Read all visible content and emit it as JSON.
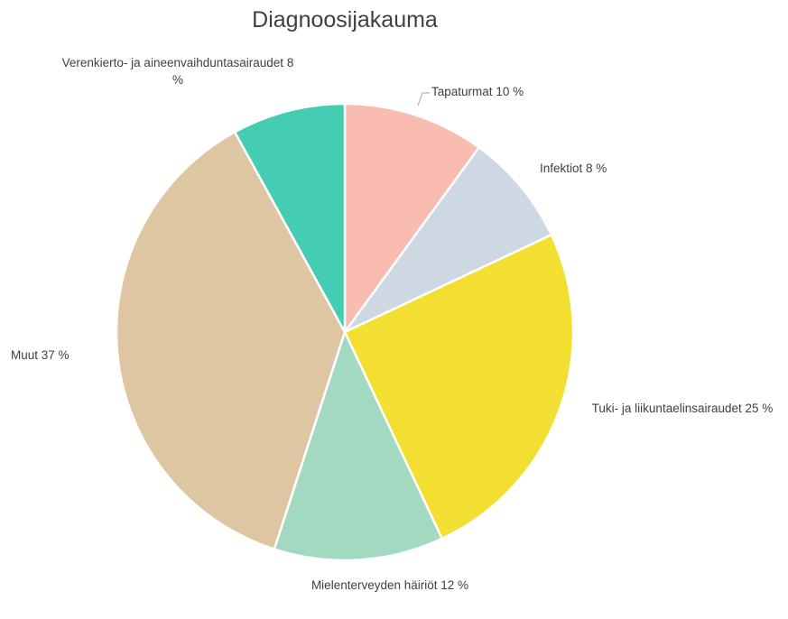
{
  "chart_data": {
    "type": "pie",
    "title": "Diagnoosijakauma",
    "categories": [
      "Tapaturmat",
      "Infektiot",
      "Tuki- ja liikuntaelinsairaudet",
      "Mielenterveyden häiriöt",
      "Muut",
      "Verenkierto- ja aineenvaihduntasairaudet"
    ],
    "values": [
      10,
      8,
      25,
      12,
      37,
      8
    ],
    "value_labels": [
      "10 %",
      "8 %",
      "25 %",
      "12 %",
      "37 %",
      "8 %"
    ],
    "colors": [
      "#f8bcb0",
      "#cdd8e3",
      "#f2df32",
      "#a3d9c0",
      "#dfc6a2",
      "#44cdb3"
    ]
  }
}
